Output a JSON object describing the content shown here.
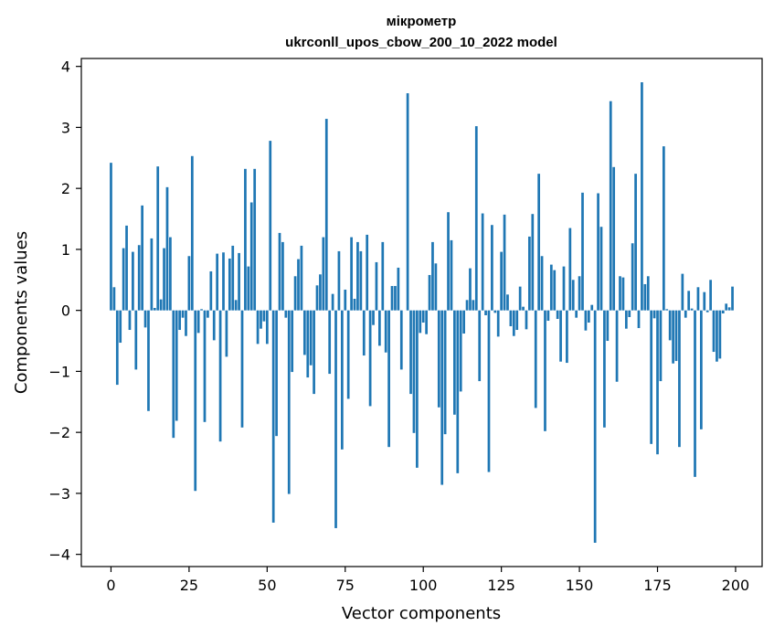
{
  "chart_data": {
    "type": "bar",
    "title": "мікрометр",
    "subtitle": "ukrconll_upos_cbow_200_10_2022 model",
    "xlabel": "Vector components",
    "ylabel": "Components values",
    "xlim": [
      -9.5,
      208.5
    ],
    "ylim": [
      -4.2,
      4.13
    ],
    "xticks": [
      0,
      25,
      50,
      75,
      100,
      125,
      150,
      175,
      200
    ],
    "yticks": [
      -4,
      -3,
      -2,
      -1,
      0,
      1,
      2,
      3,
      4
    ],
    "grid": false,
    "bar_color": "#1f77b4",
    "values": [
      2.42,
      0.38,
      -1.22,
      -0.53,
      1.02,
      1.39,
      -0.32,
      0.96,
      -0.97,
      1.07,
      1.72,
      -0.28,
      -1.65,
      1.18,
      0.04,
      2.36,
      0.18,
      1.02,
      2.02,
      1.2,
      -2.09,
      -1.81,
      -0.32,
      -0.12,
      -0.42,
      0.89,
      2.53,
      -2.96,
      -0.37,
      0.02,
      -1.83,
      -0.12,
      0.64,
      -0.49,
      0.93,
      -2.15,
      0.95,
      -0.76,
      0.85,
      1.06,
      0.17,
      0.94,
      -1.92,
      2.32,
      0.72,
      1.77,
      2.32,
      -0.55,
      -0.3,
      -0.18,
      -0.55,
      2.78,
      -3.48,
      -2.06,
      1.27,
      1.12,
      -0.12,
      -3.01,
      -1.01,
      0.56,
      0.84,
      1.06,
      -0.73,
      -1.1,
      -0.9,
      -1.37,
      0.41,
      0.59,
      1.2,
      3.14,
      -1.04,
      0.27,
      -3.57,
      0.97,
      -2.28,
      0.34,
      -1.45,
      1.2,
      0.19,
      1.12,
      0.97,
      -0.74,
      1.24,
      -1.57,
      -0.24,
      0.79,
      -0.58,
      1.12,
      -0.69,
      -2.24,
      0.4,
      0.4,
      0.7,
      -0.97,
      0.0,
      3.56,
      -1.37,
      -2.01,
      -2.58,
      -0.37,
      -0.2,
      -0.39,
      0.58,
      1.12,
      0.77,
      -1.59,
      -2.86,
      -2.03,
      1.61,
      1.15,
      -1.71,
      -2.67,
      -1.33,
      -0.38,
      0.17,
      0.69,
      0.17,
      3.02,
      -1.16,
      1.59,
      -0.08,
      -2.65,
      1.4,
      -0.04,
      -0.43,
      0.96,
      1.57,
      0.26,
      -0.26,
      -0.42,
      -0.32,
      0.39,
      0.06,
      -0.31,
      1.21,
      1.58,
      -1.6,
      2.24,
      0.89,
      -1.98,
      -0.17,
      0.75,
      0.66,
      -0.14,
      -0.84,
      0.72,
      -0.86,
      1.35,
      0.5,
      -0.12,
      0.56,
      1.93,
      -0.33,
      -0.2,
      0.09,
      -3.81,
      1.92,
      1.37,
      -1.92,
      -0.5,
      3.43,
      2.35,
      -1.17,
      0.56,
      0.54,
      -0.3,
      -0.11,
      1.1,
      2.24,
      -0.29,
      3.74,
      0.43,
      0.56,
      -2.19,
      -0.13,
      -2.36,
      -1.16,
      2.69,
      0.02,
      -0.49,
      -0.87,
      -0.83,
      -2.24,
      0.6,
      -0.12,
      0.32,
      0.03,
      -2.73,
      0.38,
      -1.95,
      0.3,
      -0.03,
      0.5,
      -0.68,
      -0.84,
      -0.79,
      -0.05,
      0.11,
      0.05,
      0.39
    ]
  }
}
